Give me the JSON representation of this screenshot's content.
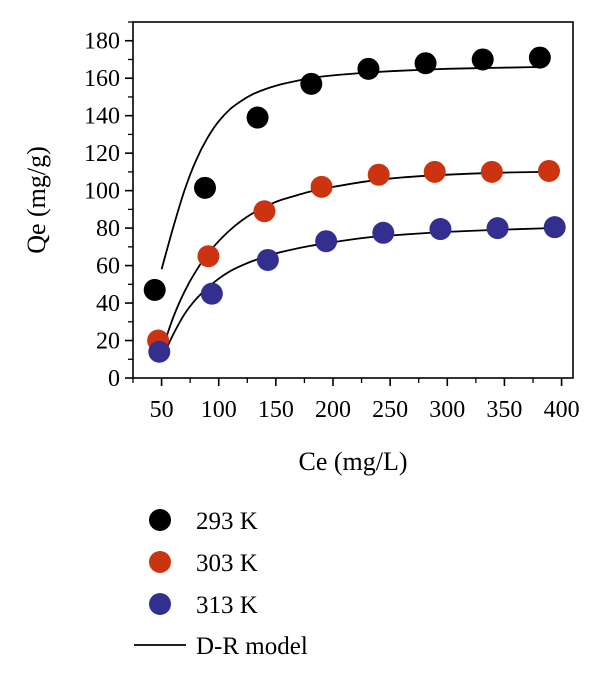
{
  "chart_data": {
    "type": "scatter",
    "xlabel": "Ce (mg/L)",
    "ylabel": "Qe (mg/g)",
    "xlim": [
      25,
      410
    ],
    "ylim": [
      0,
      190
    ],
    "x_ticks": [
      50,
      100,
      150,
      200,
      250,
      300,
      350,
      400
    ],
    "y_ticks": [
      0,
      20,
      40,
      60,
      80,
      100,
      120,
      140,
      160,
      180
    ],
    "grid": false,
    "legend_position": "below",
    "series": [
      {
        "name": "293 K",
        "color": "#000000",
        "x": [
          44,
          88,
          134,
          181,
          231,
          281,
          331,
          381
        ],
        "y": [
          47,
          101.5,
          139,
          157,
          165,
          168,
          170,
          171
        ]
      },
      {
        "name": "303 K",
        "color": "#cc3311",
        "x": [
          47,
          91,
          140,
          190,
          240,
          289,
          339,
          389
        ],
        "y": [
          20,
          65,
          89,
          102,
          108.5,
          110,
          110,
          110.5
        ]
      },
      {
        "name": "313 K",
        "color": "#332f8f",
        "x": [
          48,
          94,
          143,
          194,
          244,
          294,
          344,
          394
        ],
        "y": [
          14,
          45,
          63,
          73,
          77.5,
          79.5,
          80,
          80.5
        ]
      }
    ],
    "fit_lines": [
      {
        "name": "D-R model",
        "color": "#000000",
        "curves": [
          {
            "x": [
              50,
              60,
              70,
              80,
              90,
              100,
              110,
              120,
              130,
              140,
              150,
              160,
              180,
              200,
              230,
              260,
              300,
              340,
              380
            ],
            "y": [
              58,
              80,
              100,
              116,
              128,
              137,
              143.5,
              148,
              151.5,
              154,
              156,
              157.5,
              160,
              161.5,
              163,
              164,
              165,
              165.5,
              166
            ]
          },
          {
            "x": [
              50,
              60,
              70,
              80,
              90,
              100,
              110,
              120,
              130,
              140,
              150,
              160,
              180,
              200,
              230,
              260,
              300,
              340,
              385
            ],
            "y": [
              14,
              32,
              46,
              57,
              66,
              73,
              79,
              84,
              88,
              91,
              94,
              96,
              99.5,
              102,
              105,
              107,
              108.5,
              109.5,
              110
            ]
          },
          {
            "x": [
              50,
              60,
              70,
              80,
              90,
              100,
              110,
              120,
              130,
              140,
              150,
              160,
              180,
              200,
              230,
              260,
              300,
              340,
              390
            ],
            "y": [
              10,
              23,
              34,
              42,
              48,
              53,
              57,
              60,
              62.5,
              64.5,
              66.5,
              68,
              70.5,
              72.5,
              75,
              76.5,
              78,
              79,
              80
            ]
          }
        ]
      }
    ]
  }
}
